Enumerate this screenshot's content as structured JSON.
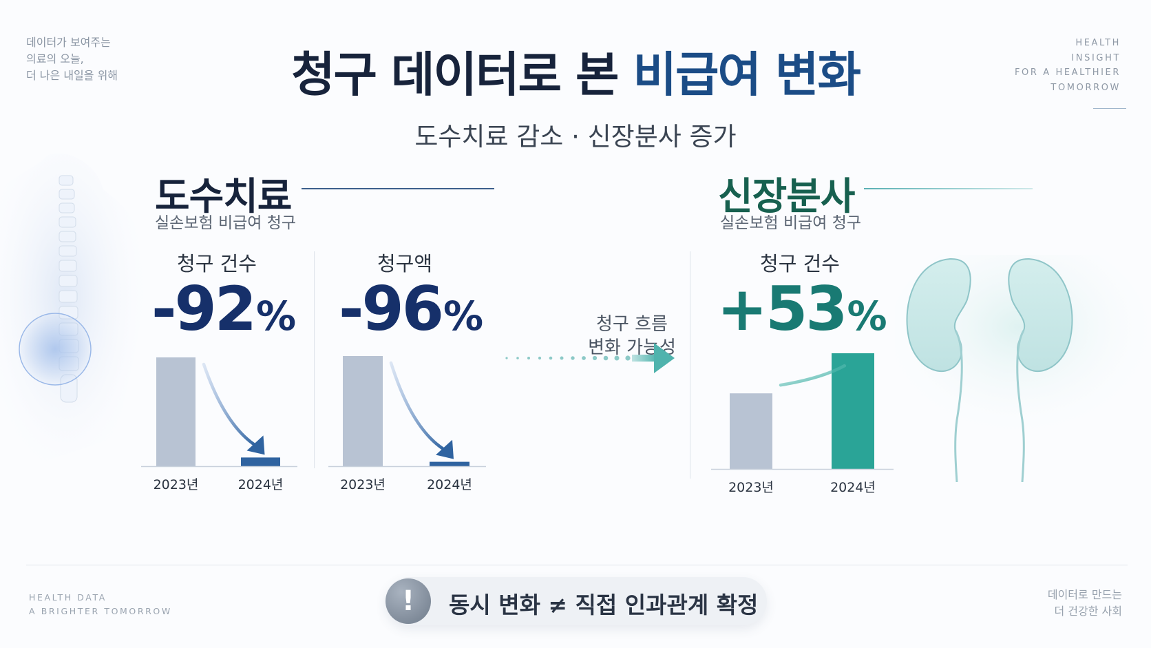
{
  "header": {
    "title_part1": "청구 데이터로 본",
    "title_part2": "비급여 변화",
    "subtitle": "도수치료 감소 · 신장분사 증가"
  },
  "corner_captions": {
    "top_left": [
      "데이터가 보여주는",
      "의료의 오늘,",
      "더 나은 내일을 위해"
    ],
    "top_right": [
      "HEALTH",
      "INSIGHT",
      "FOR A HEALTHIER",
      "TOMORROW"
    ],
    "bottom_left": [
      "HEALTH DATA",
      "A BRIGHTER TOMORROW"
    ],
    "bottom_right": [
      "데이터로 만드는",
      "더 건강한 사회"
    ]
  },
  "sections": {
    "manual_therapy": {
      "title": "도수치료",
      "subtitle": "실손보험 비급여 청구",
      "title_color": "#17233b",
      "rule_color": "#3c5f8c"
    },
    "kidney": {
      "title": "신장분사",
      "subtitle": "실손보험 비급여 청구",
      "title_color": "#17604f",
      "rule_color": "#5ab0b4"
    }
  },
  "flow_note": {
    "line1": "청구 흐름",
    "line2": "변화 가능성"
  },
  "bottom_message": {
    "icon": "exclamation-icon",
    "text": "동시 변화 ≠ 직접 인과관계 확정"
  },
  "colors": {
    "bar_2023": "#b8c3d3",
    "bar_2024_down": "#2f63a0",
    "bar_2024_up": "#2aa497",
    "value_down": "#16306a",
    "value_up": "#197a73"
  },
  "chart_data": [
    {
      "type": "bar",
      "title": "청구 건수",
      "section": "도수치료",
      "change_label": {
        "sign": "-",
        "number": "92",
        "unit": "%"
      },
      "categories": [
        "2023년",
        "2024년"
      ],
      "values": [
        100,
        8
      ],
      "ylim": [
        0,
        100
      ],
      "grid": false,
      "legend": "none"
    },
    {
      "type": "bar",
      "title": "청구액",
      "section": "도수치료",
      "change_label": {
        "sign": "-",
        "number": "96",
        "unit": "%"
      },
      "categories": [
        "2023년",
        "2024년"
      ],
      "values": [
        100,
        4
      ],
      "ylim": [
        0,
        100
      ],
      "grid": false,
      "legend": "none"
    },
    {
      "type": "bar",
      "title": "청구 건수",
      "section": "신장분사",
      "change_label": {
        "sign": "+",
        "number": "53",
        "unit": "%"
      },
      "categories": [
        "2023년",
        "2024년"
      ],
      "values": [
        100,
        153
      ],
      "ylim": [
        0,
        153
      ],
      "grid": false,
      "legend": "none"
    }
  ]
}
